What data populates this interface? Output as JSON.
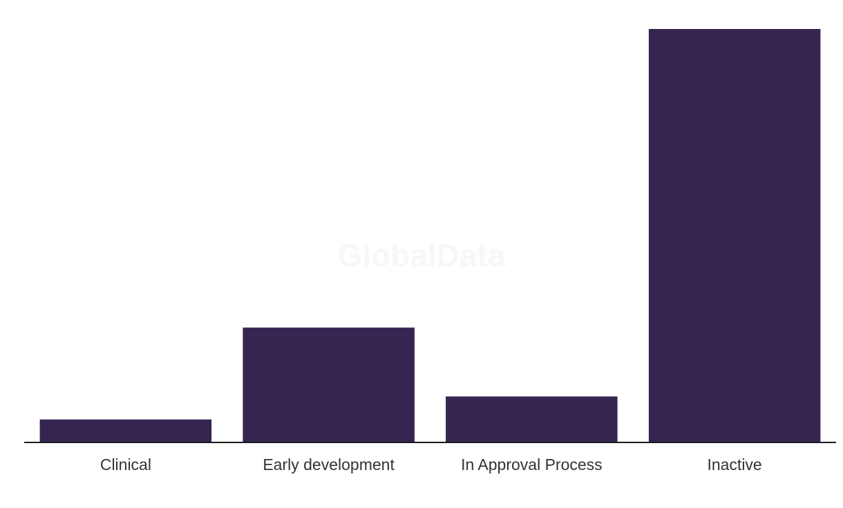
{
  "watermark": "GlobalData",
  "colors": {
    "bar": "#352551",
    "axis": "#1a1a1a",
    "label": "#333333",
    "watermark": "#f7f7f7",
    "background": "#ffffff"
  },
  "chart_data": {
    "type": "bar",
    "title": "",
    "xlabel": "",
    "ylabel": "",
    "categories": [
      "Clinical",
      "Early development",
      "In Approval Process",
      "Inactive"
    ],
    "values": [
      1,
      5,
      2,
      18
    ],
    "ylim": [
      0,
      18
    ],
    "grid": false,
    "legend": "none"
  }
}
